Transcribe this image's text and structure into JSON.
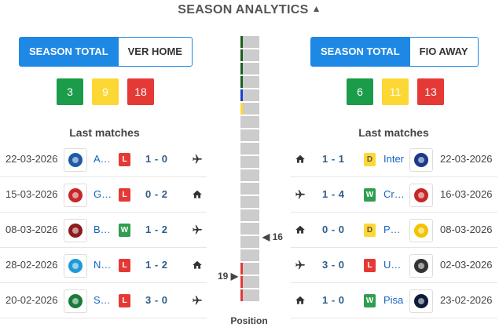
{
  "header": {
    "title": "SEASON ANALYTICS",
    "chevron_icon": "chevron-up-icon"
  },
  "home": {
    "tab_active": "SEASON TOTAL",
    "tab_inactive": "VER HOME",
    "badges": [
      {
        "value": "3",
        "color": "#1a9c4a"
      },
      {
        "value": "9",
        "color": "#fdd835"
      },
      {
        "value": "18",
        "color": "#e53935"
      }
    ],
    "last_matches_label": "Last matches",
    "matches": [
      {
        "date": "22-03-2026",
        "opponent": "Atalanta",
        "logo_color": "#1e5aa8",
        "result": "L",
        "score": "1 - 0",
        "venue": "away"
      },
      {
        "date": "15-03-2026",
        "opponent": "Genoa",
        "logo_color": "#c62828",
        "result": "L",
        "score": "0 - 2",
        "venue": "home"
      },
      {
        "date": "08-03-2026",
        "opponent": "Bologna",
        "logo_color": "#8e1b1b",
        "result": "W",
        "score": "1 - 2",
        "venue": "away"
      },
      {
        "date": "28-02-2026",
        "opponent": "Napoli",
        "logo_color": "#1e9bd7",
        "result": "L",
        "score": "1 - 2",
        "venue": "home"
      },
      {
        "date": "20-02-2026",
        "opponent": "Sassuolo",
        "logo_color": "#1b7a3a",
        "result": "L",
        "score": "3 - 0",
        "venue": "away"
      }
    ]
  },
  "away": {
    "tab_active": "SEASON TOTAL",
    "tab_inactive": "FIO AWAY",
    "badges": [
      {
        "value": "6",
        "color": "#1a9c4a"
      },
      {
        "value": "11",
        "color": "#fdd835"
      },
      {
        "value": "13",
        "color": "#e53935"
      }
    ],
    "last_matches_label": "Last matches",
    "matches": [
      {
        "date": "22-03-2026",
        "opponent": "Inter",
        "logo_color": "#1a3a8a",
        "result": "D",
        "score": "1 - 1",
        "venue": "home"
      },
      {
        "date": "16-03-2026",
        "opponent": "Cremonese",
        "logo_color": "#c62828",
        "result": "W",
        "score": "1 - 4",
        "venue": "away"
      },
      {
        "date": "08-03-2026",
        "opponent": "Parma",
        "logo_color": "#f2c300",
        "result": "D",
        "score": "0 - 0",
        "venue": "home"
      },
      {
        "date": "02-03-2026",
        "opponent": "Udinese",
        "logo_color": "#333333",
        "result": "L",
        "score": "3 - 0",
        "venue": "away"
      },
      {
        "date": "23-02-2026",
        "opponent": "Pisa",
        "logo_color": "#0d1b3a",
        "result": "W",
        "score": "1 - 0",
        "venue": "home"
      }
    ]
  },
  "standings": {
    "title": "Position",
    "total": 20,
    "marks": [
      {
        "pos": 1,
        "color": "#1b5e20"
      },
      {
        "pos": 2,
        "color": "#1b5e20"
      },
      {
        "pos": 3,
        "color": "#1b5e20"
      },
      {
        "pos": 4,
        "color": "#1b5e20"
      },
      {
        "pos": 5,
        "color": "#1e40c8"
      },
      {
        "pos": 6,
        "color": "#fdd835"
      },
      {
        "pos": 18,
        "color": "#e53935"
      },
      {
        "pos": 19,
        "color": "#e53935"
      },
      {
        "pos": 20,
        "color": "#e53935"
      }
    ],
    "home_position": "19",
    "away_position": "16"
  }
}
